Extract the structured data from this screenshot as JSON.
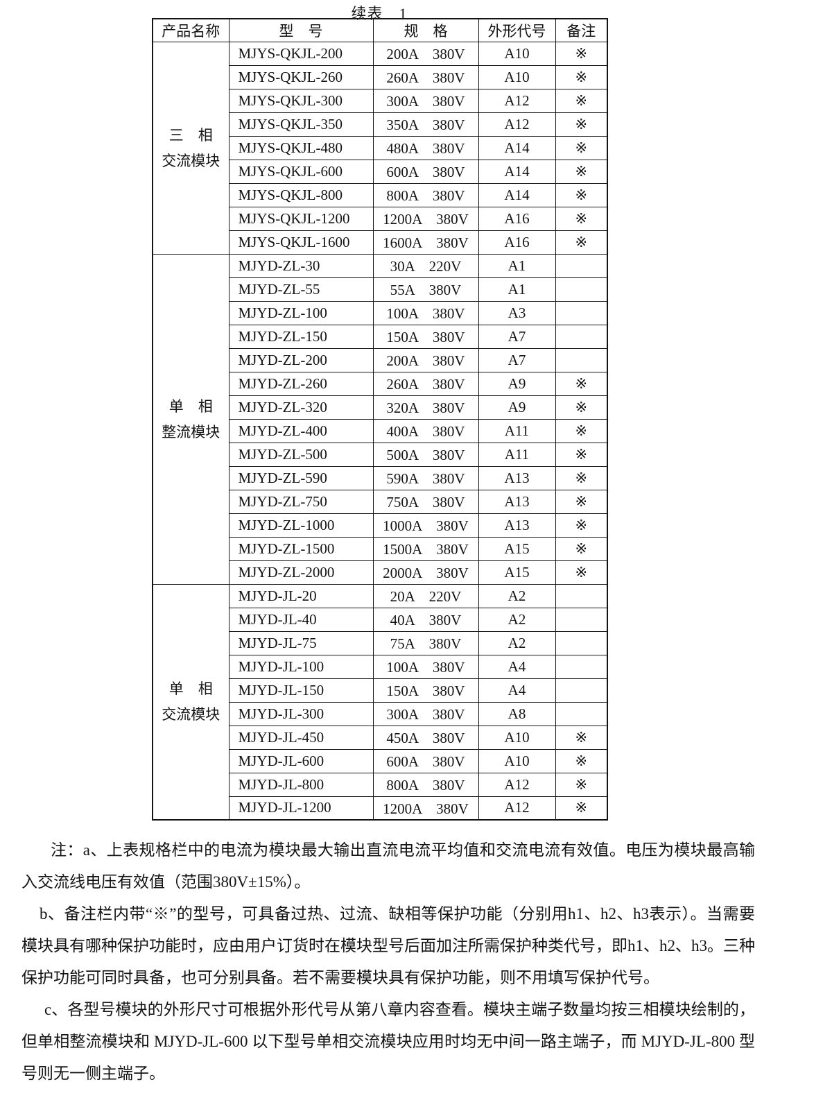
{
  "title": "续表　1",
  "table": {
    "headers": [
      "产品名称",
      "型　号",
      "规　格",
      "外形代号",
      "备注"
    ],
    "groups": [
      {
        "name_line1": "三　相",
        "name_line2": "交流模块",
        "rows": [
          {
            "model": "MJYS-QKJL-200",
            "spec": "200A　380V",
            "code": "A10",
            "remark": "※"
          },
          {
            "model": "MJYS-QKJL-260",
            "spec": "260A　380V",
            "code": "A10",
            "remark": "※"
          },
          {
            "model": "MJYS-QKJL-300",
            "spec": "300A　380V",
            "code": "A12",
            "remark": "※"
          },
          {
            "model": "MJYS-QKJL-350",
            "spec": "350A　380V",
            "code": "A12",
            "remark": "※"
          },
          {
            "model": "MJYS-QKJL-480",
            "spec": "480A　380V",
            "code": "A14",
            "remark": "※"
          },
          {
            "model": "MJYS-QKJL-600",
            "spec": "600A　380V",
            "code": "A14",
            "remark": "※"
          },
          {
            "model": "MJYS-QKJL-800",
            "spec": "800A　380V",
            "code": "A14",
            "remark": "※"
          },
          {
            "model": "MJYS-QKJL-1200",
            "spec": "1200A　380V",
            "code": "A16",
            "remark": "※"
          },
          {
            "model": "MJYS-QKJL-1600",
            "spec": "1600A　380V",
            "code": "A16",
            "remark": "※"
          }
        ]
      },
      {
        "name_line1": "单　相",
        "name_line2": "整流模块",
        "rows": [
          {
            "model": "MJYD-ZL-30",
            "spec": "30A　220V",
            "code": "A1",
            "remark": ""
          },
          {
            "model": "MJYD-ZL-55",
            "spec": "55A　380V",
            "code": "A1",
            "remark": ""
          },
          {
            "model": "MJYD-ZL-100",
            "spec": "100A　380V",
            "code": "A3",
            "remark": ""
          },
          {
            "model": "MJYD-ZL-150",
            "spec": "150A　380V",
            "code": "A7",
            "remark": ""
          },
          {
            "model": "MJYD-ZL-200",
            "spec": "200A　380V",
            "code": "A7",
            "remark": ""
          },
          {
            "model": "MJYD-ZL-260",
            "spec": "260A　380V",
            "code": "A9",
            "remark": "※"
          },
          {
            "model": "MJYD-ZL-320",
            "spec": "320A　380V",
            "code": "A9",
            "remark": "※"
          },
          {
            "model": "MJYD-ZL-400",
            "spec": "400A　380V",
            "code": "A11",
            "remark": "※"
          },
          {
            "model": "MJYD-ZL-500",
            "spec": "500A　380V",
            "code": "A11",
            "remark": "※"
          },
          {
            "model": "MJYD-ZL-590",
            "spec": "590A　380V",
            "code": "A13",
            "remark": "※"
          },
          {
            "model": "MJYD-ZL-750",
            "spec": "750A　380V",
            "code": "A13",
            "remark": "※"
          },
          {
            "model": "MJYD-ZL-1000",
            "spec": "1000A　380V",
            "code": "A13",
            "remark": "※"
          },
          {
            "model": "MJYD-ZL-1500",
            "spec": "1500A　380V",
            "code": "A15",
            "remark": "※"
          },
          {
            "model": "MJYD-ZL-2000",
            "spec": "2000A　380V",
            "code": "A15",
            "remark": "※"
          }
        ]
      },
      {
        "name_line1": "单　相",
        "name_line2": "交流模块",
        "rows": [
          {
            "model": "MJYD-JL-20",
            "spec": "20A　220V",
            "code": "A2",
            "remark": ""
          },
          {
            "model": "MJYD-JL-40",
            "spec": "40A　380V",
            "code": "A2",
            "remark": ""
          },
          {
            "model": "MJYD-JL-75",
            "spec": "75A　380V",
            "code": "A2",
            "remark": ""
          },
          {
            "model": "MJYD-JL-100",
            "spec": "100A　380V",
            "code": "A4",
            "remark": ""
          },
          {
            "model": "MJYD-JL-150",
            "spec": "150A　380V",
            "code": "A4",
            "remark": ""
          },
          {
            "model": "MJYD-JL-300",
            "spec": "300A　380V",
            "code": "A8",
            "remark": ""
          },
          {
            "model": "MJYD-JL-450",
            "spec": "450A　380V",
            "code": "A10",
            "remark": "※"
          },
          {
            "model": "MJYD-JL-600",
            "spec": "600A　380V",
            "code": "A10",
            "remark": "※"
          },
          {
            "model": "MJYD-JL-800",
            "spec": "800A　380V",
            "code": "A12",
            "remark": "※"
          },
          {
            "model": "MJYD-JL-1200",
            "spec": "1200A　380V",
            "code": "A12",
            "remark": "※"
          }
        ]
      }
    ]
  },
  "notes": [
    {
      "text": "注：a、上表规格栏中的电流为模块最大输出直流电流平均值和交流电流有效值。电压为模块最高输入交流线电压有效值（范围380V±15%）。"
    },
    {
      "text": "b、备注栏内带“※”的型号，可具备过热、过流、缺相等保护功能（分别用h1、h2、h3表示）。当需要模块具有哪种保护功能时，应由用户订货时在模块型号后面加注所需保护种类代号，即h1、h2、h3。三种保护功能可同时具备，也可分别具备。若不需要模块具有保护功能，则不用填写保护代号。"
    },
    {
      "text": "c、各型号模块的外形尺寸可根据外形代号从第八章内容查看。模块主端子数量均按三相模块绘制的，但单相整流模块和 MJYD-JL-600 以下型号单相交流模块应用时均无中间一路主端子，而 MJYD-JL-800 型号则无一侧主端子。"
    }
  ]
}
